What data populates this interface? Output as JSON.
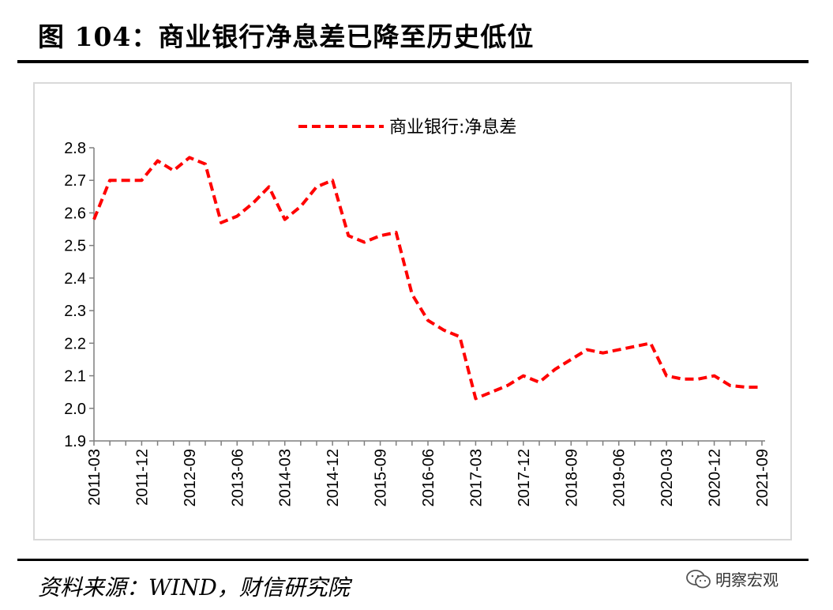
{
  "header": {
    "title": "图 104：商业银行净息差已降至历史低位"
  },
  "footer": {
    "source": "资料来源：WIND，财信研究院",
    "watermark": "明察宏观"
  },
  "colors": {
    "series": "#ff0000",
    "axis": "#7f7f7f",
    "frame": "#d9d9d9"
  },
  "watermark_icon": "wechat-icon",
  "chart_data": {
    "type": "line",
    "title": "",
    "xlabel": "",
    "ylabel": "",
    "ylim": [
      1.9,
      2.8
    ],
    "yticks": [
      "1.9",
      "2.0",
      "2.1",
      "2.2",
      "2.3",
      "2.4",
      "2.5",
      "2.6",
      "2.7",
      "2.8"
    ],
    "xtick_labels": [
      "2011-03",
      "2011-12",
      "2012-09",
      "2013-06",
      "2014-03",
      "2014-12",
      "2015-09",
      "2016-06",
      "2017-03",
      "2017-12",
      "2018-09",
      "2019-06",
      "2020-03",
      "2020-12",
      "2021-09"
    ],
    "grid": false,
    "legend": "top-center",
    "categories": [
      "2011-03",
      "2011-06",
      "2011-09",
      "2011-12",
      "2012-03",
      "2012-06",
      "2012-09",
      "2012-12",
      "2013-03",
      "2013-06",
      "2013-09",
      "2013-12",
      "2014-03",
      "2014-06",
      "2014-09",
      "2014-12",
      "2015-03",
      "2015-06",
      "2015-09",
      "2015-12",
      "2016-03",
      "2016-06",
      "2016-09",
      "2016-12",
      "2017-03",
      "2017-06",
      "2017-09",
      "2017-12",
      "2018-03",
      "2018-06",
      "2018-09",
      "2018-12",
      "2019-03",
      "2019-06",
      "2019-09",
      "2019-12",
      "2020-03",
      "2020-06",
      "2020-09",
      "2020-12",
      "2021-03",
      "2021-06",
      "2021-09"
    ],
    "series": [
      {
        "name": "商业银行:净息差",
        "style": "dashed",
        "values": [
          2.58,
          2.7,
          2.7,
          2.7,
          2.76,
          2.73,
          2.77,
          2.75,
          2.57,
          2.59,
          2.63,
          2.68,
          2.58,
          2.62,
          2.68,
          2.7,
          2.53,
          2.51,
          2.53,
          2.54,
          2.35,
          2.27,
          2.24,
          2.22,
          2.03,
          2.05,
          2.07,
          2.1,
          2.08,
          2.12,
          2.15,
          2.18,
          2.17,
          2.18,
          2.19,
          2.2,
          2.1,
          2.09,
          2.09,
          2.1,
          2.07,
          2.065,
          2.065
        ]
      }
    ]
  }
}
